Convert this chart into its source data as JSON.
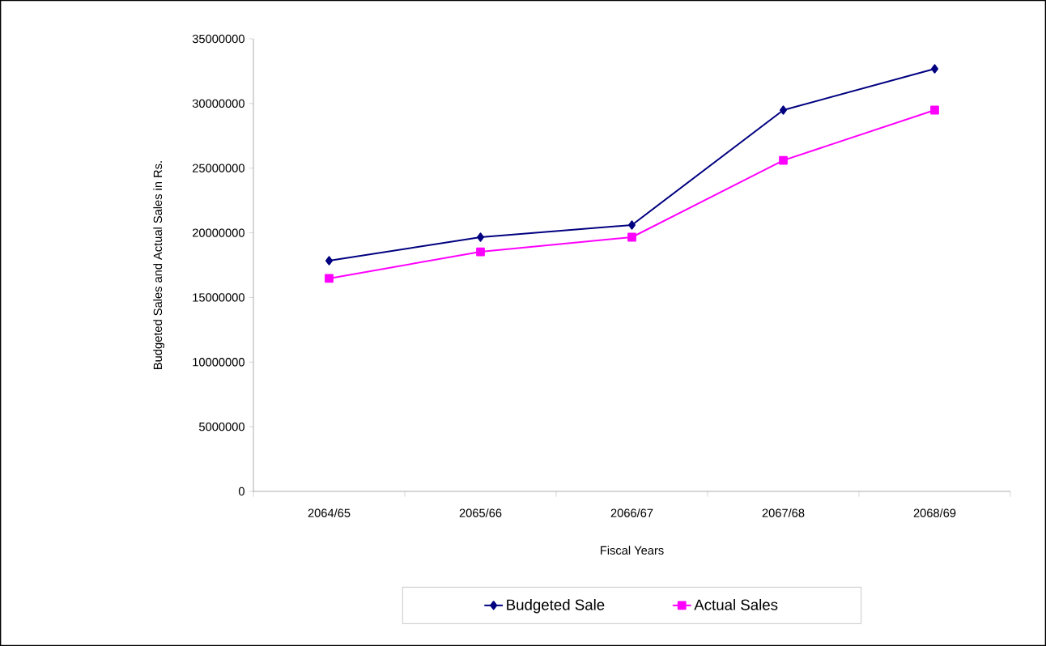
{
  "chart_data": {
    "type": "line",
    "xlabel": "Fiscal Years",
    "ylabel": "Budgeted Sales and Actual Sales in Rs.",
    "categories": [
      "2064/65",
      "2065/66",
      "2066/67",
      "2067/68",
      "2068/69"
    ],
    "series": [
      {
        "name": "Budgeted Sale",
        "color": "#000080",
        "marker": "diamond",
        "values": [
          17840000,
          19660000,
          20600000,
          29490000,
          32680000
        ]
      },
      {
        "name": "Actual Sales",
        "color": "#ff00ff",
        "marker": "square",
        "values": [
          16470000,
          18530000,
          19660000,
          25600000,
          29490000
        ]
      }
    ],
    "ylim": [
      0,
      35000000
    ],
    "yticks": [
      0,
      5000000,
      10000000,
      15000000,
      20000000,
      25000000,
      30000000,
      35000000
    ],
    "grid": false,
    "legend": "bottom",
    "line_style": "solid"
  }
}
